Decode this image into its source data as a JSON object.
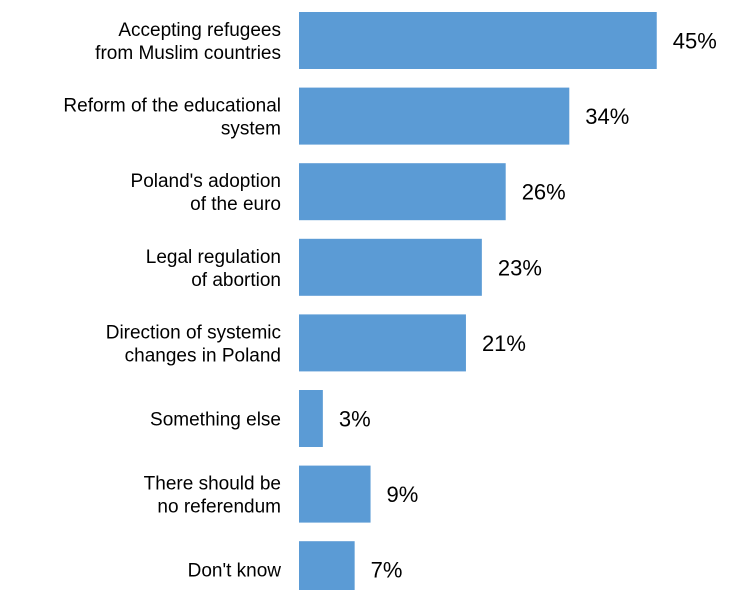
{
  "chart_data": {
    "type": "bar",
    "orientation": "horizontal",
    "categories": [
      [
        "Accepting refugees",
        "from Muslim countries"
      ],
      [
        "Reform of the educational",
        "system"
      ],
      [
        "Poland's adoption",
        "of the euro"
      ],
      [
        "Legal regulation",
        "of abortion"
      ],
      [
        "Direction of systemic",
        "changes in Poland"
      ],
      [
        "Something else"
      ],
      [
        "There should be",
        "no referendum"
      ],
      [
        "Don't know"
      ]
    ],
    "values": [
      45,
      34,
      26,
      23,
      21,
      3,
      9,
      7
    ],
    "value_labels": [
      "45%",
      "34%",
      "26%",
      "23%",
      "21%",
      "3%",
      "9%",
      "7%"
    ],
    "unit": "%",
    "xlim": [
      0,
      45
    ],
    "bar_color": "#5b9bd5",
    "grid": false,
    "legend": "none"
  }
}
